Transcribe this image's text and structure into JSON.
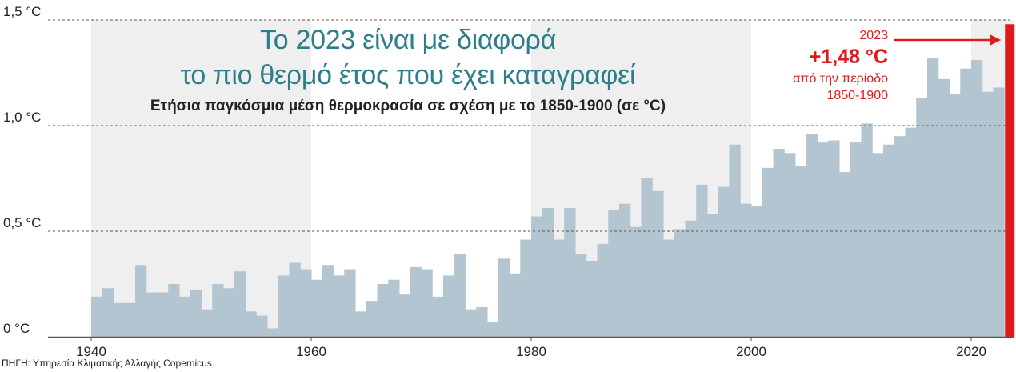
{
  "title_line1": "Το 2023 είναι με διαφορά",
  "title_line2": "το πιο θερμό έτος που έχει καταγραφεί",
  "subtitle": "Ετήσια παγκόσμια μέση θερμοκρασία σε σχέση με το 1850-1900 (σε °C)",
  "source": "ΠΗΓΗ: Υπηρεσία Κλιματικής Αλλαγής Copernicus",
  "annotation": {
    "year": "2023",
    "value": "+1,48 °C",
    "line1": "από την περίοδο",
    "line2": "1850-1900"
  },
  "colors": {
    "bar": "#b3c5d0",
    "highlight": "#e01a1a",
    "title": "#2e7d8c",
    "band": "#efefef"
  },
  "chart_data": {
    "type": "bar",
    "xlabel": "",
    "ylabel": "",
    "ylim": [
      0,
      1.5
    ],
    "xlim": [
      1940,
      2023
    ],
    "yticks": [
      {
        "value": 0,
        "label": "0 °C"
      },
      {
        "value": 0.5,
        "label": "0,5 °C"
      },
      {
        "value": 1.0,
        "label": "1,0 °C"
      },
      {
        "value": 1.5,
        "label": "1,5 °C"
      }
    ],
    "xticks": [
      {
        "value": 1940,
        "label": "1940"
      },
      {
        "value": 1960,
        "label": "1960"
      },
      {
        "value": 1980,
        "label": "1980"
      },
      {
        "value": 2000,
        "label": "2000"
      },
      {
        "value": 2020,
        "label": "2020"
      }
    ],
    "highlight_year": 2023,
    "years": [
      1940,
      1941,
      1942,
      1943,
      1944,
      1945,
      1946,
      1947,
      1948,
      1949,
      1950,
      1951,
      1952,
      1953,
      1954,
      1955,
      1956,
      1957,
      1958,
      1959,
      1960,
      1961,
      1962,
      1963,
      1964,
      1965,
      1966,
      1967,
      1968,
      1969,
      1970,
      1971,
      1972,
      1973,
      1974,
      1975,
      1976,
      1977,
      1978,
      1979,
      1980,
      1981,
      1982,
      1983,
      1984,
      1985,
      1986,
      1987,
      1988,
      1989,
      1990,
      1991,
      1992,
      1993,
      1994,
      1995,
      1996,
      1997,
      1998,
      1999,
      2000,
      2001,
      2002,
      2003,
      2004,
      2005,
      2006,
      2007,
      2008,
      2009,
      2010,
      2011,
      2012,
      2013,
      2014,
      2015,
      2016,
      2017,
      2018,
      2019,
      2020,
      2021,
      2022,
      2023
    ],
    "values": [
      0.19,
      0.23,
      0.16,
      0.16,
      0.34,
      0.21,
      0.21,
      0.25,
      0.19,
      0.22,
      0.13,
      0.25,
      0.23,
      0.31,
      0.12,
      0.1,
      0.04,
      0.29,
      0.35,
      0.32,
      0.27,
      0.34,
      0.29,
      0.32,
      0.12,
      0.17,
      0.25,
      0.27,
      0.2,
      0.33,
      0.32,
      0.19,
      0.29,
      0.39,
      0.13,
      0.14,
      0.07,
      0.37,
      0.3,
      0.46,
      0.57,
      0.61,
      0.46,
      0.61,
      0.39,
      0.36,
      0.44,
      0.6,
      0.63,
      0.52,
      0.75,
      0.69,
      0.46,
      0.51,
      0.55,
      0.72,
      0.58,
      0.71,
      0.91,
      0.63,
      0.62,
      0.8,
      0.89,
      0.87,
      0.81,
      0.96,
      0.92,
      0.93,
      0.78,
      0.92,
      1.01,
      0.87,
      0.91,
      0.95,
      0.99,
      1.13,
      1.32,
      1.22,
      1.15,
      1.27,
      1.31,
      1.16,
      1.18,
      1.48
    ]
  }
}
